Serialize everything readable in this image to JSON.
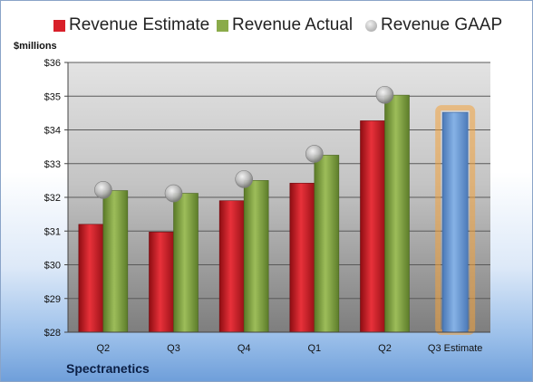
{
  "chart_data": {
    "type": "bar",
    "unit_label": "$millions",
    "company": "Spectranetics",
    "categories": [
      "Q2",
      "Q3",
      "Q4",
      "Q1",
      "Q2",
      "Q3 Estimate"
    ],
    "ylim": [
      28,
      36
    ],
    "yticks": [
      "$28",
      "$29",
      "$30",
      "$31",
      "$32",
      "$33",
      "$34",
      "$35",
      "$36"
    ],
    "grid": true,
    "legend_position": "top",
    "series": [
      {
        "name": "Revenue Estimate",
        "kind": "bar",
        "color": "#d8202a",
        "values": [
          31.2,
          30.97,
          31.9,
          32.42,
          34.27,
          null
        ]
      },
      {
        "name": "Revenue Actual",
        "kind": "bar",
        "color": "#8aab4a",
        "values": [
          32.2,
          32.12,
          32.5,
          33.25,
          35.03,
          null
        ]
      },
      {
        "name": "Revenue GAAP",
        "kind": "marker",
        "color": "#a8a8a8",
        "values": [
          32.22,
          32.12,
          32.54,
          33.29,
          35.04,
          null
        ]
      },
      {
        "name": "Q3 Estimate",
        "kind": "highlight-bar",
        "color": "#6f9fd8",
        "values": [
          null,
          null,
          null,
          null,
          null,
          34.52
        ]
      }
    ]
  }
}
